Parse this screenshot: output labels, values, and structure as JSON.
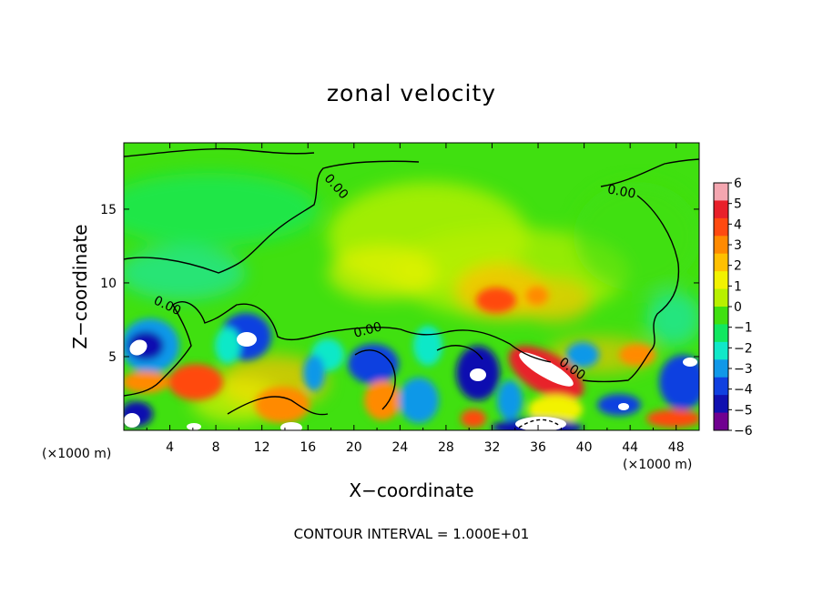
{
  "chart_data": {
    "type": "heatmap",
    "title": "zonal velocity",
    "xlabel": "X−coordinate",
    "ylabel": "Z−coordinate",
    "x_unit_label": "(×1000 m)",
    "xlim": [
      0,
      50
    ],
    "ylim": [
      0,
      19.5
    ],
    "x_ticks": [
      4,
      8,
      12,
      16,
      20,
      24,
      28,
      32,
      36,
      40,
      44,
      48
    ],
    "y_ticks": [
      5,
      10,
      15
    ],
    "colorbar": {
      "ticks": [
        "6",
        "5",
        "4",
        "3",
        "2",
        "1",
        "0",
        "−1",
        "−2",
        "−3",
        "−4",
        "−5",
        "−6"
      ],
      "colors": [
        "#f4a6b0",
        "#e8202a",
        "#ff4a10",
        "#ff8a00",
        "#ffc000",
        "#f2f200",
        "#b8f000",
        "#40e010",
        "#10e860",
        "#10e8c8",
        "#1098e8",
        "#1040e0",
        "#1010b0",
        "#700090"
      ]
    },
    "contour_labels": [
      "0.00",
      "0.00",
      "0.00",
      "0.00",
      "0.00",
      "0.00"
    ],
    "footnote": "CONTOUR INTERVAL = 1.000E+01"
  }
}
